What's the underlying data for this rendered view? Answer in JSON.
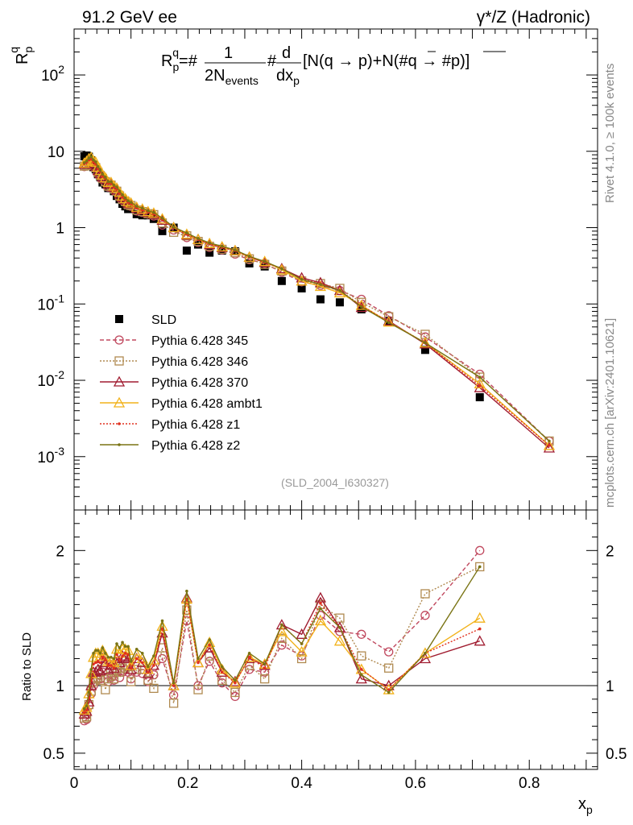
{
  "header": {
    "left": "91.2 GeV ee",
    "right": "γ*/Z (Hadronic)"
  },
  "side_text": {
    "rivet": "Rivet 4.1.0, ≥ 100k events",
    "mcplots": "mcplots.cern.ch [arXiv:2401.10621]"
  },
  "chart_data": [
    {
      "type": "line",
      "panel": "main",
      "yscale": "log",
      "ylabel": "R_p^q",
      "formula": "R_p^q=#1/2N_events #d/dx_p[N(q → p)+N(#q̄ → #p̄)]",
      "analysis_id": "(SLD_2004_I630327)",
      "xlim": [
        0,
        0.92
      ],
      "ylim": [
        0.0002,
        400
      ],
      "y_tick_labels": [
        "10^-3",
        "10^-2",
        "10^-1",
        "1",
        "10",
        "10^2"
      ],
      "x": [
        0.018,
        0.022,
        0.026,
        0.03,
        0.034,
        0.038,
        0.042,
        0.046,
        0.05,
        0.055,
        0.06,
        0.065,
        0.07,
        0.075,
        0.08,
        0.085,
        0.09,
        0.095,
        0.1,
        0.11,
        0.12,
        0.13,
        0.14,
        0.155,
        0.175,
        0.198,
        0.218,
        0.238,
        0.26,
        0.283,
        0.308,
        0.335,
        0.365,
        0.4,
        0.433,
        0.467,
        0.505,
        0.553,
        0.617,
        0.713,
        0.835
      ],
      "series": [
        {
          "name": "SLD",
          "values": [
            8.6,
            8.8,
            8.5,
            7.6,
            6.2,
            5.8,
            5.0,
            4.6,
            3.9,
            3.7,
            3.3,
            3.3,
            3.0,
            2.6,
            2.35,
            2.05,
            1.9,
            1.75,
            1.82,
            1.5,
            1.45,
            1.45,
            1.3,
            0.9,
            1.0,
            0.5,
            0.6,
            0.47,
            0.5,
            0.49,
            0.34,
            0.31,
            0.2,
            0.16,
            0.115,
            0.105,
            0.085,
            0.06,
            0.025,
            0.006,
            null
          ]
        },
        {
          "name": "Pythia 6.428 345",
          "values": [
            6.3,
            6.5,
            7.0,
            7.0,
            6.3,
            6.0,
            5.2,
            4.8,
            4.3,
            3.9,
            3.4,
            3.5,
            3.1,
            2.9,
            2.5,
            2.3,
            2.15,
            1.95,
            1.9,
            1.65,
            1.58,
            1.5,
            1.42,
            1.08,
            0.93,
            0.74,
            0.64,
            0.55,
            0.51,
            0.45,
            0.38,
            0.34,
            0.26,
            0.195,
            0.175,
            0.15,
            0.115,
            0.07,
            0.037,
            0.012,
            0.0016
          ]
        },
        {
          "name": "Pythia 6.428 346",
          "values": [
            6.4,
            6.6,
            7.1,
            7.2,
            6.5,
            6.1,
            5.3,
            4.8,
            4.4,
            4.0,
            3.5,
            3.6,
            3.2,
            3.0,
            2.6,
            2.35,
            2.2,
            2.0,
            1.95,
            1.7,
            1.62,
            1.52,
            1.48,
            1.15,
            0.87,
            0.78,
            0.66,
            0.57,
            0.52,
            0.47,
            0.39,
            0.33,
            0.27,
            0.2,
            0.185,
            0.16,
            0.105,
            0.068,
            0.04,
            0.011,
            0.0016
          ]
        },
        {
          "name": "Pythia 6.428 370",
          "values": [
            6.8,
            7.0,
            7.4,
            7.4,
            6.8,
            6.4,
            5.6,
            5.1,
            4.6,
            4.3,
            3.7,
            3.8,
            3.4,
            3.1,
            2.75,
            2.5,
            2.3,
            2.1,
            2.05,
            1.8,
            1.7,
            1.58,
            1.5,
            1.25,
            1.0,
            0.8,
            0.7,
            0.6,
            0.55,
            0.5,
            0.41,
            0.35,
            0.29,
            0.22,
            0.19,
            0.15,
            0.09,
            0.06,
            0.03,
            0.008,
            0.0013
          ]
        },
        {
          "name": "Pythia 6.428 ambt1",
          "values": [
            7.0,
            7.4,
            8.0,
            8.3,
            7.5,
            7.2,
            6.2,
            5.6,
            4.9,
            4.5,
            3.9,
            3.9,
            3.5,
            3.3,
            2.9,
            2.6,
            2.4,
            2.2,
            2.1,
            1.85,
            1.75,
            1.62,
            1.55,
            1.3,
            1.0,
            0.82,
            0.7,
            0.62,
            0.56,
            0.5,
            0.41,
            0.36,
            0.28,
            0.2,
            0.17,
            0.14,
            0.096,
            0.058,
            0.031,
            0.009,
            0.0014
          ]
        },
        {
          "name": "Pythia 6.428 z1",
          "values": [
            6.9,
            7.2,
            7.7,
            7.9,
            7.2,
            6.8,
            5.9,
            5.4,
            4.7,
            4.4,
            3.8,
            3.8,
            3.4,
            3.2,
            2.8,
            2.5,
            2.35,
            2.15,
            2.05,
            1.8,
            1.7,
            1.6,
            1.5,
            1.28,
            1.0,
            0.82,
            0.7,
            0.61,
            0.55,
            0.5,
            0.41,
            0.35,
            0.29,
            0.21,
            0.185,
            0.15,
            0.095,
            0.058,
            0.031,
            0.0085,
            0.0014
          ]
        },
        {
          "name": "Pythia 6.428 z2",
          "values": [
            7.1,
            7.5,
            8.1,
            8.5,
            7.7,
            7.3,
            6.3,
            5.7,
            5.0,
            4.6,
            4.0,
            4.0,
            3.6,
            3.4,
            3.0,
            2.7,
            2.45,
            2.25,
            2.15,
            1.9,
            1.8,
            1.66,
            1.58,
            1.33,
            1.02,
            0.85,
            0.72,
            0.63,
            0.57,
            0.51,
            0.42,
            0.36,
            0.29,
            0.21,
            0.18,
            0.15,
            0.092,
            0.057,
            0.031,
            0.011,
            0.0016
          ]
        }
      ]
    },
    {
      "type": "line",
      "panel": "ratio",
      "ylabel": "Ratio to SLD",
      "xlabel": "x_p",
      "xlim": [
        0,
        0.92
      ],
      "ylim": [
        0.38,
        2.3
      ],
      "y_ticks": [
        0.5,
        1,
        2
      ],
      "x_ticks": [
        0,
        0.2,
        0.4,
        0.6,
        0.8
      ],
      "x": [
        0.018,
        0.022,
        0.026,
        0.03,
        0.034,
        0.038,
        0.042,
        0.046,
        0.05,
        0.055,
        0.06,
        0.065,
        0.07,
        0.075,
        0.08,
        0.085,
        0.09,
        0.095,
        0.1,
        0.11,
        0.12,
        0.13,
        0.14,
        0.155,
        0.175,
        0.198,
        0.218,
        0.238,
        0.26,
        0.283,
        0.308,
        0.335,
        0.365,
        0.4,
        0.433,
        0.467,
        0.505,
        0.553,
        0.617,
        0.713
      ],
      "series": [
        {
          "name": "Pythia 6.428 345",
          "values": [
            0.74,
            0.75,
            0.85,
            0.94,
            1.0,
            1.03,
            1.05,
            1.05,
            1.1,
            1.05,
            1.03,
            1.06,
            1.04,
            1.1,
            1.06,
            1.1,
            1.12,
            1.1,
            1.05,
            1.1,
            1.09,
            1.03,
            1.08,
            1.2,
            0.93,
            1.48,
            1.0,
            1.18,
            1.02,
            0.92,
            1.12,
            1.1,
            1.3,
            1.22,
            1.52,
            1.4,
            1.38,
            1.25,
            1.52,
            2.0
          ]
        },
        {
          "name": "Pythia 6.428 346",
          "values": [
            0.76,
            0.77,
            0.86,
            0.96,
            1.03,
            1.05,
            1.06,
            1.04,
            1.12,
            0.97,
            1.05,
            1.07,
            1.05,
            1.12,
            1.1,
            1.13,
            1.15,
            1.14,
            1.03,
            1.12,
            1.12,
            1.04,
            0.98,
            1.28,
            0.87,
            1.56,
            0.97,
            1.22,
            1.04,
            0.95,
            1.15,
            1.05,
            1.35,
            1.2,
            1.6,
            1.5,
            1.22,
            1.13,
            1.68,
            1.88
          ]
        },
        {
          "name": "Pythia 6.428 370",
          "values": [
            0.79,
            0.81,
            0.88,
            1.0,
            1.1,
            1.1,
            1.12,
            1.11,
            1.2,
            1.17,
            1.12,
            1.15,
            1.13,
            1.2,
            1.17,
            1.22,
            1.21,
            1.2,
            1.12,
            1.2,
            1.17,
            1.09,
            1.15,
            1.39,
            1.0,
            1.65,
            1.17,
            1.28,
            1.1,
            1.03,
            1.2,
            1.15,
            1.45,
            1.38,
            1.65,
            1.43,
            1.05,
            1.0,
            1.2,
            1.33
          ]
        },
        {
          "name": "Pythia 6.428 ambt1",
          "values": [
            0.82,
            0.84,
            0.94,
            1.09,
            1.21,
            1.24,
            1.24,
            1.22,
            1.26,
            1.22,
            1.18,
            1.18,
            1.17,
            1.27,
            1.24,
            1.27,
            1.27,
            1.26,
            1.15,
            1.23,
            1.2,
            1.12,
            1.19,
            1.44,
            1.0,
            1.64,
            1.17,
            1.32,
            1.12,
            1.02,
            1.21,
            1.16,
            1.4,
            1.25,
            1.48,
            1.33,
            1.12,
            0.97,
            1.24,
            1.5
          ]
        },
        {
          "name": "Pythia 6.428 z1",
          "values": [
            0.8,
            0.82,
            0.91,
            1.04,
            1.16,
            1.17,
            1.18,
            1.17,
            1.21,
            1.19,
            1.15,
            1.15,
            1.13,
            1.23,
            1.19,
            1.22,
            1.24,
            1.23,
            1.13,
            1.2,
            1.17,
            1.1,
            1.15,
            1.42,
            1.0,
            1.64,
            1.17,
            1.3,
            1.1,
            1.02,
            1.21,
            1.13,
            1.45,
            1.31,
            1.61,
            1.43,
            1.12,
            0.97,
            1.24,
            1.42
          ]
        },
        {
          "name": "Pythia 6.428 z2",
          "values": [
            0.83,
            0.85,
            0.95,
            1.12,
            1.24,
            1.26,
            1.26,
            1.24,
            1.28,
            1.24,
            1.21,
            1.21,
            1.2,
            1.31,
            1.28,
            1.32,
            1.29,
            1.29,
            1.18,
            1.27,
            1.24,
            1.14,
            1.22,
            1.48,
            1.02,
            1.7,
            1.2,
            1.34,
            1.14,
            1.04,
            1.24,
            1.16,
            1.45,
            1.31,
            1.57,
            1.43,
            1.08,
            0.95,
            1.24,
            1.88
          ]
        }
      ]
    }
  ],
  "styles": {
    "SLD": {
      "color": "#000000",
      "marker": "square-filled",
      "dash": ""
    },
    "Pythia 6.428 345": {
      "color": "#c0485e",
      "marker": "circle-open",
      "dash": "5,3"
    },
    "Pythia 6.428 346": {
      "color": "#b08a50",
      "marker": "square-open",
      "dash": "2,2"
    },
    "Pythia 6.428 370": {
      "color": "#a01c30",
      "marker": "triangle-open",
      "dash": ""
    },
    "Pythia 6.428 ambt1": {
      "color": "#f2b21a",
      "marker": "triangle-open",
      "dash": ""
    },
    "Pythia 6.428 z1": {
      "color": "#e0301e",
      "marker": "dot",
      "dash": "2,2"
    },
    "Pythia 6.428 z2": {
      "color": "#7a7414",
      "marker": "dot",
      "dash": ""
    }
  }
}
